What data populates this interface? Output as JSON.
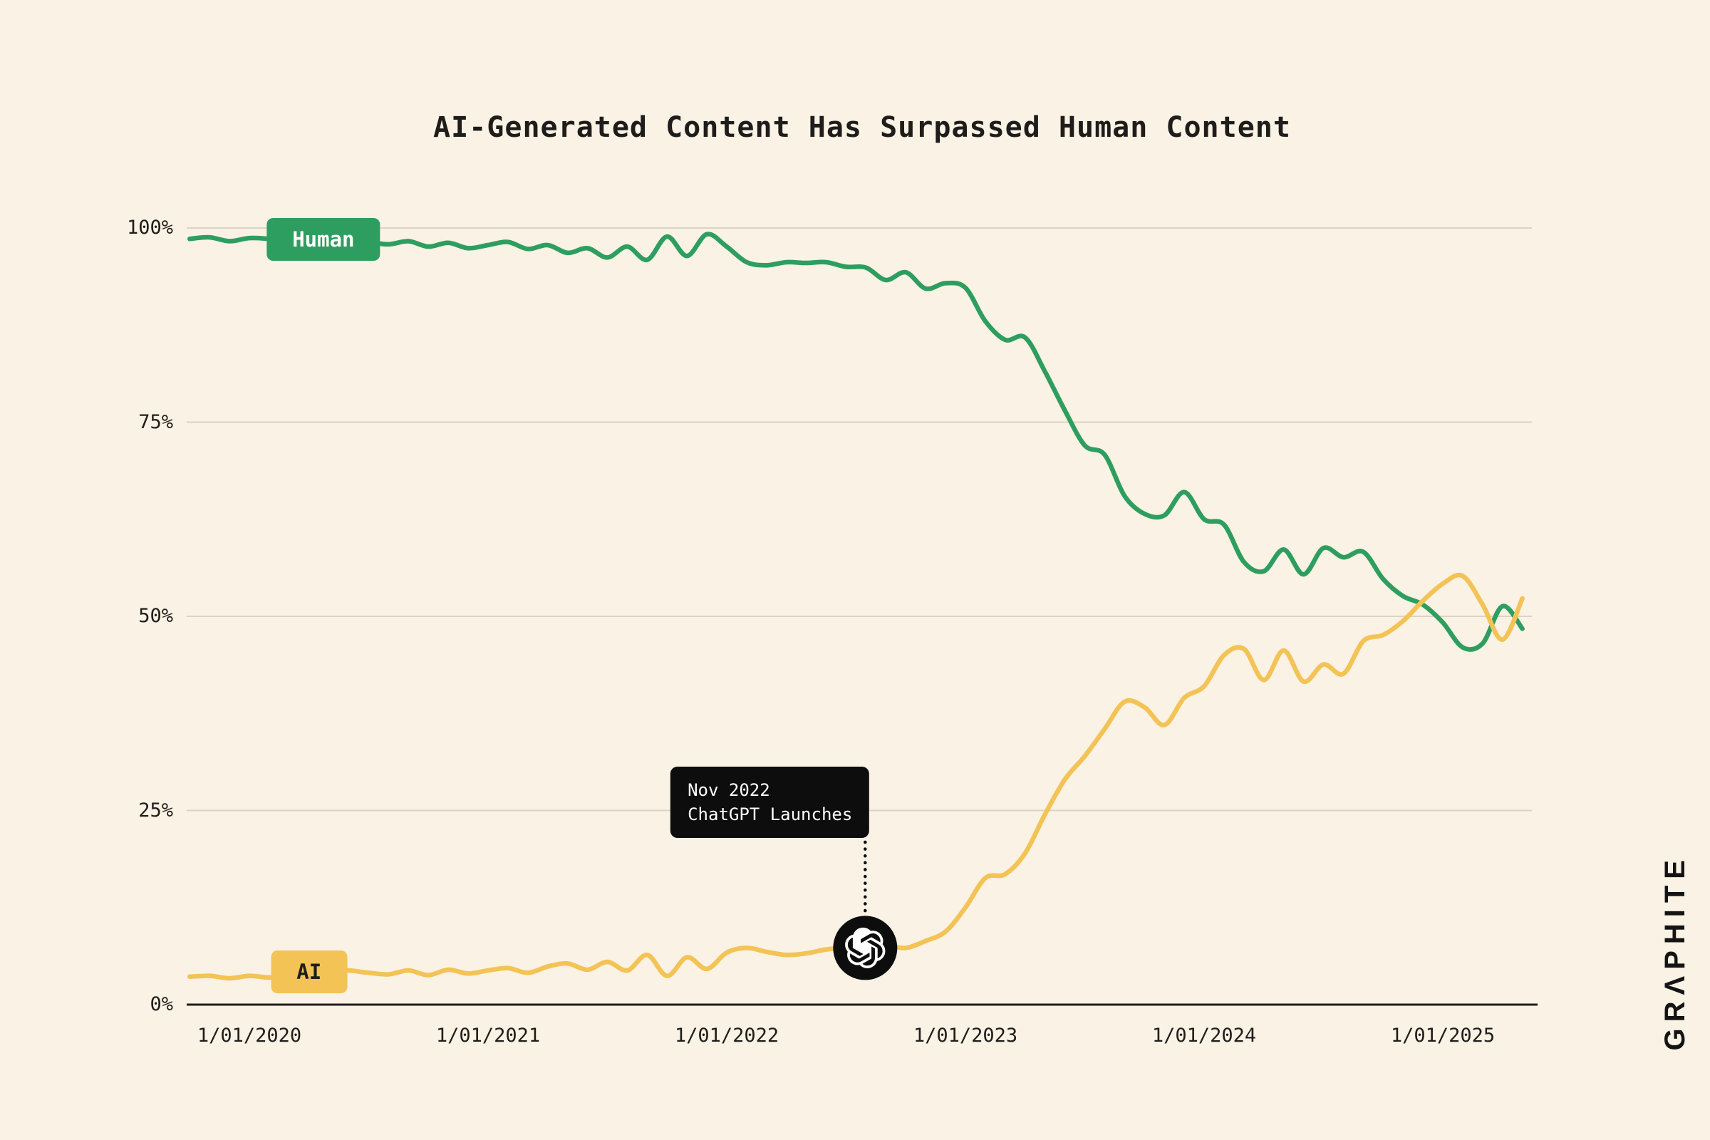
{
  "page": {
    "brand": "GRΛPHITE",
    "colors": {
      "background": "#FAF2E4",
      "ink": "#1F1D1B"
    }
  },
  "chart_data": {
    "type": "line",
    "title": "AI-Generated Content Has Surpassed Human Content",
    "xlabel": "",
    "ylabel": "",
    "units": "percent",
    "x_unit": "month",
    "start": "2019-10",
    "xlim": [
      2019.75,
      2025.45
    ],
    "ylim": [
      0,
      100
    ],
    "grid": "horizontal",
    "grid_color": "#DBD3C3",
    "axis_color": "#1F1D1B",
    "x_ticks": [
      2020,
      2021,
      2022,
      2023,
      2024,
      2025
    ],
    "x_tick_labels": [
      "1/01/2020",
      "1/01/2021",
      "1/01/2022",
      "1/01/2023",
      "1/01/2024",
      "1/01/2025"
    ],
    "y_ticks": [
      0,
      25,
      50,
      75,
      100
    ],
    "y_tick_labels": [
      "0%",
      "25%",
      "50%",
      "75%",
      "100%"
    ],
    "legend": "inline-chips",
    "series": [
      {
        "name": "Human",
        "color": "#2E9E60",
        "label_text_color": "#FFFFFF",
        "label_anchor": {
          "t": 2020.31,
          "v": 98.5
        },
        "values": [
          98.6,
          98.8,
          98.3,
          98.7,
          98.6,
          98.4,
          98.6,
          98.3,
          98.5,
          98.2,
          97.9,
          98.3,
          97.6,
          98.1,
          97.4,
          97.8,
          98.2,
          97.3,
          97.8,
          96.8,
          97.4,
          96.2,
          97.6,
          95.9,
          98.9,
          96.4,
          99.2,
          97.6,
          95.6,
          95.2,
          95.6,
          95.5,
          95.6,
          95.0,
          94.9,
          93.3,
          94.3,
          92.2,
          92.9,
          92.3,
          88.0,
          85.6,
          85.9,
          81.5,
          76.5,
          72.0,
          70.8,
          65.5,
          63.2,
          63.0,
          66.0,
          62.5,
          61.8,
          57.0,
          55.8,
          58.6,
          55.4,
          58.8,
          57.6,
          58.3,
          54.8,
          52.6,
          51.5,
          49.2,
          46.0,
          46.5,
          51.3,
          48.4
        ]
      },
      {
        "name": "AI",
        "color": "#F3C356",
        "label_text_color": "#1F1D1B",
        "label_anchor": {
          "t": 2020.25,
          "v": 4.2
        },
        "values": [
          3.6,
          3.7,
          3.4,
          3.7,
          3.5,
          3.8,
          4.3,
          4.5,
          4.4,
          4.1,
          3.9,
          4.4,
          3.8,
          4.5,
          4.0,
          4.4,
          4.7,
          4.1,
          4.9,
          5.3,
          4.5,
          5.5,
          4.4,
          6.4,
          3.7,
          6.1,
          4.6,
          6.7,
          7.3,
          6.8,
          6.4,
          6.6,
          7.1,
          7.3,
          7.0,
          7.6,
          7.3,
          8.2,
          9.4,
          12.5,
          16.3,
          16.8,
          19.5,
          24.5,
          29.0,
          32.0,
          35.5,
          39.0,
          38.3,
          36.0,
          39.5,
          41.0,
          45.0,
          45.8,
          41.8,
          45.6,
          41.6,
          43.8,
          42.6,
          46.8,
          47.6,
          49.4,
          52.0,
          54.2,
          55.2,
          51.5,
          47.0,
          52.3
        ]
      }
    ],
    "annotation": {
      "line1": "Nov 2022",
      "line2": "ChatGPT Launches",
      "t": 2022.58,
      "v": 7.3,
      "icon": "openai-icon",
      "bg": "#0D0D0D",
      "text_color": "#FFFFFF"
    }
  }
}
